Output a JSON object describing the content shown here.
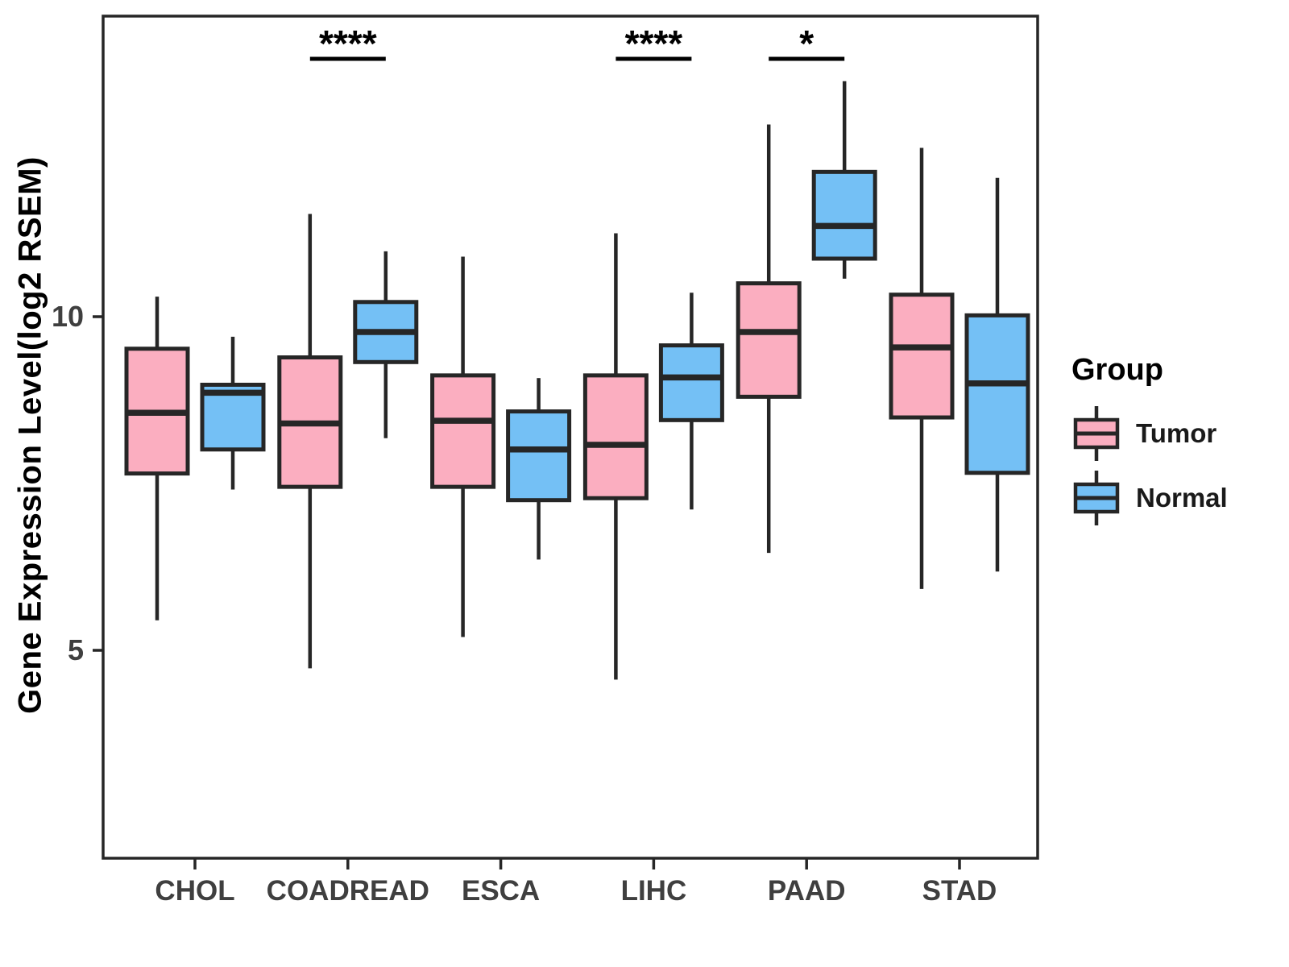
{
  "chart_data": {
    "type": "boxplot",
    "title": "",
    "xlabel": "",
    "ylabel": "Gene Expression Level(log2 RSEM)",
    "categories": [
      "CHOL",
      "COADREAD",
      "ESCA",
      "LIHC",
      "PAAD",
      "STAD"
    ],
    "y_axis": {
      "ticks": [
        5,
        10
      ],
      "range": [
        1.9,
        14.5
      ],
      "grid": false
    },
    "legend": {
      "title": "Group",
      "position": "right",
      "entries": [
        {
          "label": "Tumor",
          "color": "#FBAEC0"
        },
        {
          "label": "Normal",
          "color": "#74C0F5"
        }
      ]
    },
    "stroke_color": "#262626",
    "tick_label_color": "#3f3f3f",
    "series": [
      {
        "name": "Tumor",
        "color": "#FBAEC0",
        "boxes": [
          {
            "category": "CHOL",
            "low": 5.45,
            "q1": 7.65,
            "median": 8.56,
            "q3": 9.52,
            "high": 10.3
          },
          {
            "category": "COADREAD",
            "low": 4.73,
            "q1": 7.45,
            "median": 8.4,
            "q3": 9.39,
            "high": 11.54
          },
          {
            "category": "ESCA",
            "low": 5.2,
            "q1": 7.45,
            "median": 8.44,
            "q3": 9.12,
            "high": 10.9
          },
          {
            "category": "LIHC",
            "low": 4.56,
            "q1": 7.28,
            "median": 8.08,
            "q3": 9.12,
            "high": 11.25
          },
          {
            "category": "PAAD",
            "low": 6.46,
            "q1": 8.8,
            "median": 9.77,
            "q3": 10.5,
            "high": 12.88
          },
          {
            "category": "STAD",
            "low": 5.92,
            "q1": 8.49,
            "median": 9.54,
            "q3": 10.33,
            "high": 12.53
          }
        ]
      },
      {
        "name": "Normal",
        "color": "#74C0F5",
        "boxes": [
          {
            "category": "CHOL",
            "low": 7.41,
            "q1": 8.01,
            "median": 8.86,
            "q3": 8.98,
            "high": 9.7
          },
          {
            "category": "COADREAD",
            "low": 8.18,
            "q1": 9.32,
            "median": 9.77,
            "q3": 10.22,
            "high": 10.98
          },
          {
            "category": "ESCA",
            "low": 6.36,
            "q1": 7.25,
            "median": 8.01,
            "q3": 8.58,
            "high": 9.08
          },
          {
            "category": "LIHC",
            "low": 7.11,
            "q1": 8.45,
            "median": 9.09,
            "q3": 9.57,
            "high": 10.36
          },
          {
            "category": "PAAD",
            "low": 10.57,
            "q1": 10.87,
            "median": 11.36,
            "q3": 12.17,
            "high": 13.53
          },
          {
            "category": "STAD",
            "low": 6.18,
            "q1": 7.66,
            "median": 9.0,
            "q3": 10.02,
            "high": 12.08
          }
        ]
      }
    ],
    "significance": [
      {
        "category": "COADREAD",
        "label": "****"
      },
      {
        "category": "LIHC",
        "label": "****"
      },
      {
        "category": "PAAD",
        "label": "*"
      }
    ]
  }
}
